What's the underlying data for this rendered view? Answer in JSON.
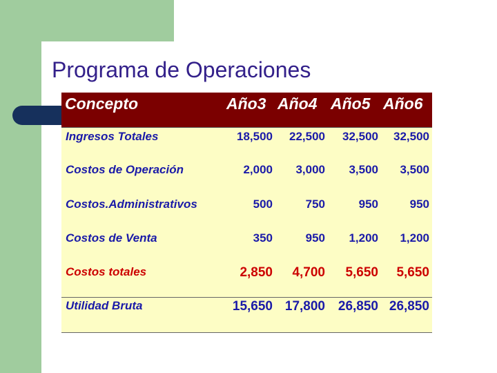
{
  "title": "Programa de Operaciones",
  "table": {
    "headers": [
      "Concepto",
      "Año3",
      "Año4",
      "Año5",
      "Año6"
    ],
    "rows": [
      {
        "label": "Ingresos Totales",
        "values": [
          "18,500",
          "22,500",
          "32,500",
          "32,500"
        ]
      },
      {
        "label": "Costos de Operación",
        "values": [
          "2,000",
          "3,000",
          "3,500",
          "3,500"
        ]
      },
      {
        "label": "Costos.Administrativos",
        "values": [
          "500",
          "750",
          "950",
          "950"
        ]
      },
      {
        "label": "Costos de Venta",
        "values": [
          "350",
          "950",
          "1,200",
          "1,200"
        ]
      },
      {
        "label": "Costos totales",
        "values": [
          "2,850",
          "4,700",
          "5,650",
          "5,650"
        ]
      },
      {
        "label": "Utilidad Bruta",
        "values": [
          "15,650",
          "17,800",
          "26,850",
          "26,850"
        ]
      }
    ]
  },
  "colors": {
    "header_bg": "#7b0000",
    "table_bg": "#fdfdc5",
    "text_blue": "#1a1aa8",
    "total_red": "#cc0000",
    "title_color": "#33208a",
    "accent_green": "#a0cc9e",
    "pill_navy": "#16305c"
  }
}
